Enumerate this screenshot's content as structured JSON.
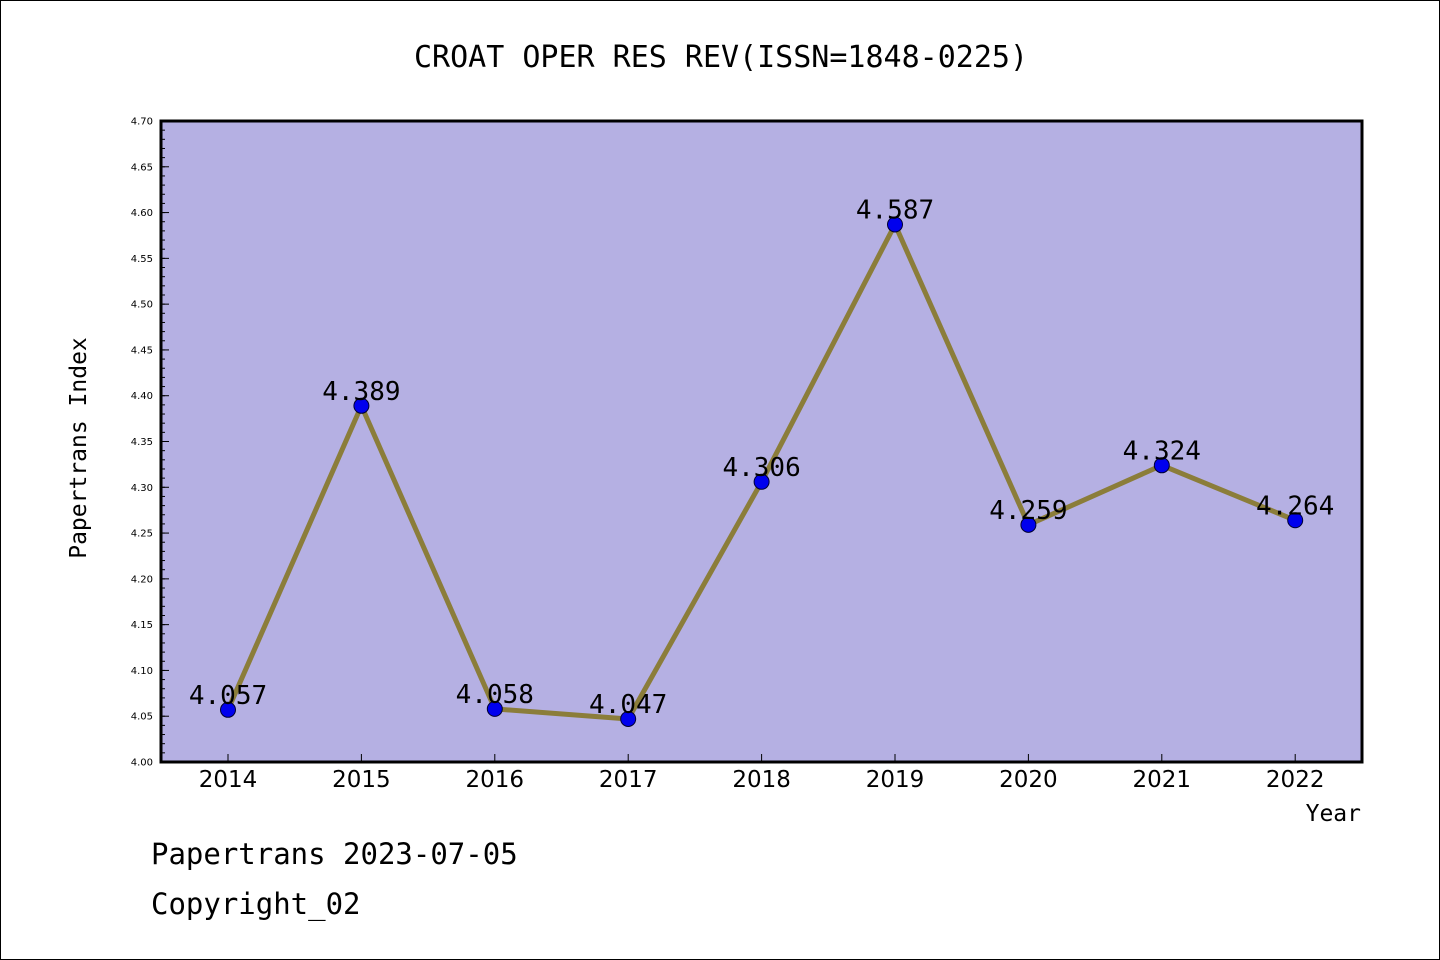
{
  "colors": {
    "plot_bg": "#b5b0e3",
    "line": "#8b7d3a",
    "marker": "#0000ee",
    "axis": "#000000"
  },
  "footer": {
    "date_text": "Papertrans 2023-07-05",
    "copyright": "Copyright_02"
  },
  "chart_data": {
    "type": "line",
    "title": "CROAT OPER RES REV(ISSN=1848-0225)",
    "xlabel": "Year",
    "ylabel": "Papertrans Index",
    "categories": [
      "2014",
      "2015",
      "2016",
      "2017",
      "2018",
      "2019",
      "2020",
      "2021",
      "2022"
    ],
    "values": [
      4.057,
      4.389,
      4.058,
      4.047,
      4.306,
      4.587,
      4.259,
      4.324,
      4.264
    ],
    "data_labels": [
      "4.057",
      "4.389",
      "4.058",
      "4.047",
      "4.306",
      "4.587",
      "4.259",
      "4.324",
      "4.264"
    ],
    "ylim": [
      4.0,
      4.7
    ],
    "y_ticks": [
      "4.00",
      "4.05",
      "4.10",
      "4.15",
      "4.20",
      "4.25",
      "4.30",
      "4.35",
      "4.40",
      "4.45",
      "4.50",
      "4.55",
      "4.60",
      "4.65",
      "4.70"
    ],
    "grid": false,
    "legend": "none"
  }
}
